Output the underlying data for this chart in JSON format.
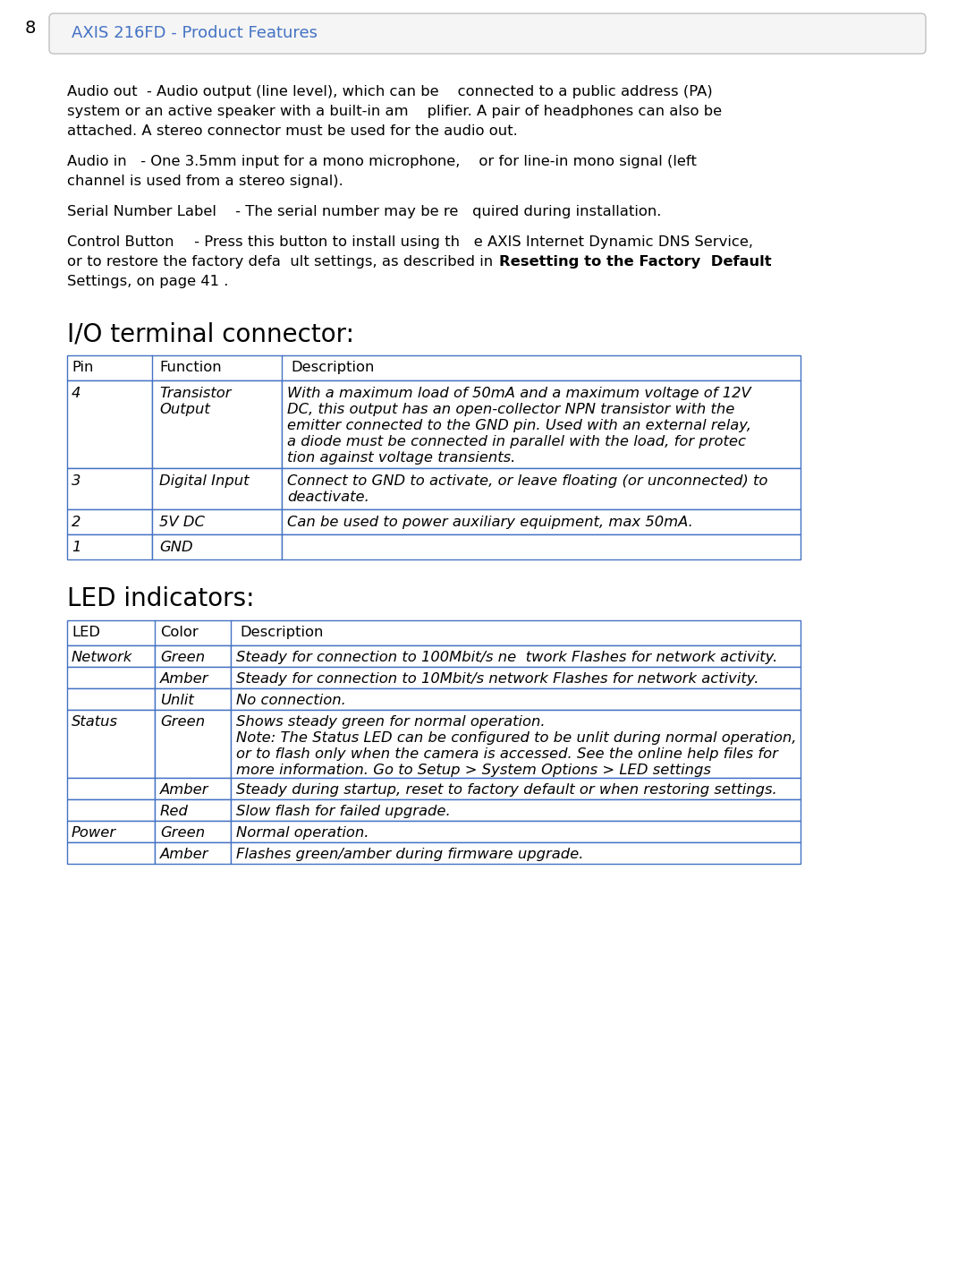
{
  "page_bg": "#ffffff",
  "header_num": "8",
  "header_title": "AXIS 216FD - Product Features",
  "header_title_color": "#4472c4",
  "table_border": "#4472c4",
  "fs_body": 11.8,
  "fs_section": 20,
  "fs_header": 13,
  "io_title": "I/O terminal connector:",
  "io_headers": [
    "Pin",
    "Function",
    "Description"
  ],
  "io_rows": [
    {
      "pin": "4",
      "func": "Transistor\nOutput",
      "desc": "With a maximum load of 50mA and a maximum voltage of 12V\nDC, this output has an open-collector NPN transistor with the\nemitter connected to the GND pin. Used with an external relay,\na diode must be connected in parallel with the load, for protec\ntion against voltage transients."
    },
    {
      "pin": "3",
      "func": "Digital Input",
      "desc": "Connect to GND to activate, or leave floating (or unconnected) to\ndeactivate."
    },
    {
      "pin": "2",
      "func": "5V DC",
      "desc": "Can be used to power auxiliary equipment, max 50mA."
    },
    {
      "pin": "1",
      "func": "GND",
      "desc": ""
    }
  ],
  "led_title": "LED indicators:",
  "led_headers": [
    "LED",
    "Color",
    "Description"
  ],
  "led_rows": [
    {
      "led": "Network",
      "color": "Green",
      "desc": "Steady for connection to 100Mbit/s ne  twork Flashes for network activity."
    },
    {
      "led": "",
      "color": "Amber",
      "desc": "Steady for connection to 10Mbit/s network Flashes for network activity."
    },
    {
      "led": "",
      "color": "Unlit",
      "desc": "No connection."
    },
    {
      "led": "Status",
      "color": "Green",
      "desc": "Shows steady green for normal operation.\nNote: The Status LED can be configured to be unlit during normal operation,\nor to flash only when the camera is accessed. See the online help files for\nmore information. Go to Setup > System Options > LED settings"
    },
    {
      "led": "",
      "color": "Amber",
      "desc": "Steady during startup, reset to factory default or when restoring settings."
    },
    {
      "led": "",
      "color": "Red",
      "desc": "Slow flash for failed upgrade."
    },
    {
      "led": "Power",
      "color": "Green",
      "desc": "Normal operation."
    },
    {
      "led": "",
      "color": "Amber",
      "desc": "Flashes green/amber during firmware upgrade."
    }
  ]
}
